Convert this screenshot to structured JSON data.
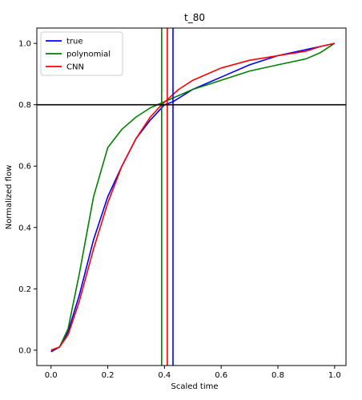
{
  "chart_data": {
    "type": "line",
    "title": "t_80",
    "xlabel": "Scaled time",
    "ylabel": "Normalized flow",
    "xlim": [
      -0.05,
      1.04
    ],
    "ylim": [
      -0.05,
      1.05
    ],
    "xticks": [
      0.0,
      0.2,
      0.4,
      0.6,
      0.8,
      1.0
    ],
    "xtick_labels": [
      "0.0",
      "0.2",
      "0.4",
      "0.6",
      "0.8",
      "1.0"
    ],
    "yticks": [
      0.0,
      0.2,
      0.4,
      0.6,
      0.8,
      1.0
    ],
    "ytick_labels": [
      "0.0",
      "0.2",
      "0.4",
      "0.6",
      "0.8",
      "1.0"
    ],
    "grid": false,
    "legend_position": "top-left",
    "series": [
      {
        "name": "true",
        "color": "#0000ff",
        "x": [
          0.0,
          0.03,
          0.06,
          0.1,
          0.15,
          0.2,
          0.25,
          0.3,
          0.35,
          0.4,
          0.43,
          0.5,
          0.6,
          0.7,
          0.8,
          0.9,
          0.95,
          1.0
        ],
        "y": [
          -0.005,
          0.01,
          0.06,
          0.18,
          0.36,
          0.5,
          0.6,
          0.69,
          0.75,
          0.8,
          0.81,
          0.85,
          0.89,
          0.93,
          0.96,
          0.98,
          0.99,
          1.0
        ]
      },
      {
        "name": "polynomial",
        "color": "#008000",
        "x": [
          0.0,
          0.03,
          0.06,
          0.1,
          0.15,
          0.2,
          0.25,
          0.3,
          0.35,
          0.4,
          0.5,
          0.6,
          0.7,
          0.8,
          0.9,
          0.95,
          1.0
        ],
        "y": [
          0.0,
          0.01,
          0.07,
          0.25,
          0.5,
          0.66,
          0.72,
          0.76,
          0.79,
          0.81,
          0.85,
          0.88,
          0.91,
          0.93,
          0.95,
          0.97,
          1.0
        ]
      },
      {
        "name": "CNN",
        "color": "#ff0000",
        "x": [
          0.0,
          0.03,
          0.06,
          0.1,
          0.15,
          0.2,
          0.25,
          0.3,
          0.35,
          0.39,
          0.45,
          0.5,
          0.6,
          0.7,
          0.8,
          0.9,
          0.95,
          1.0
        ],
        "y": [
          0.0,
          0.01,
          0.05,
          0.16,
          0.33,
          0.48,
          0.6,
          0.69,
          0.76,
          0.8,
          0.85,
          0.88,
          0.92,
          0.945,
          0.96,
          0.975,
          0.99,
          1.0
        ]
      }
    ],
    "vlines": [
      {
        "x": 0.39,
        "color": "#008000"
      },
      {
        "x": 0.41,
        "color": "#ff0000"
      },
      {
        "x": 0.43,
        "color": "#0000ff"
      }
    ],
    "hlines": [
      {
        "y": 0.8,
        "color": "#000000"
      }
    ]
  }
}
